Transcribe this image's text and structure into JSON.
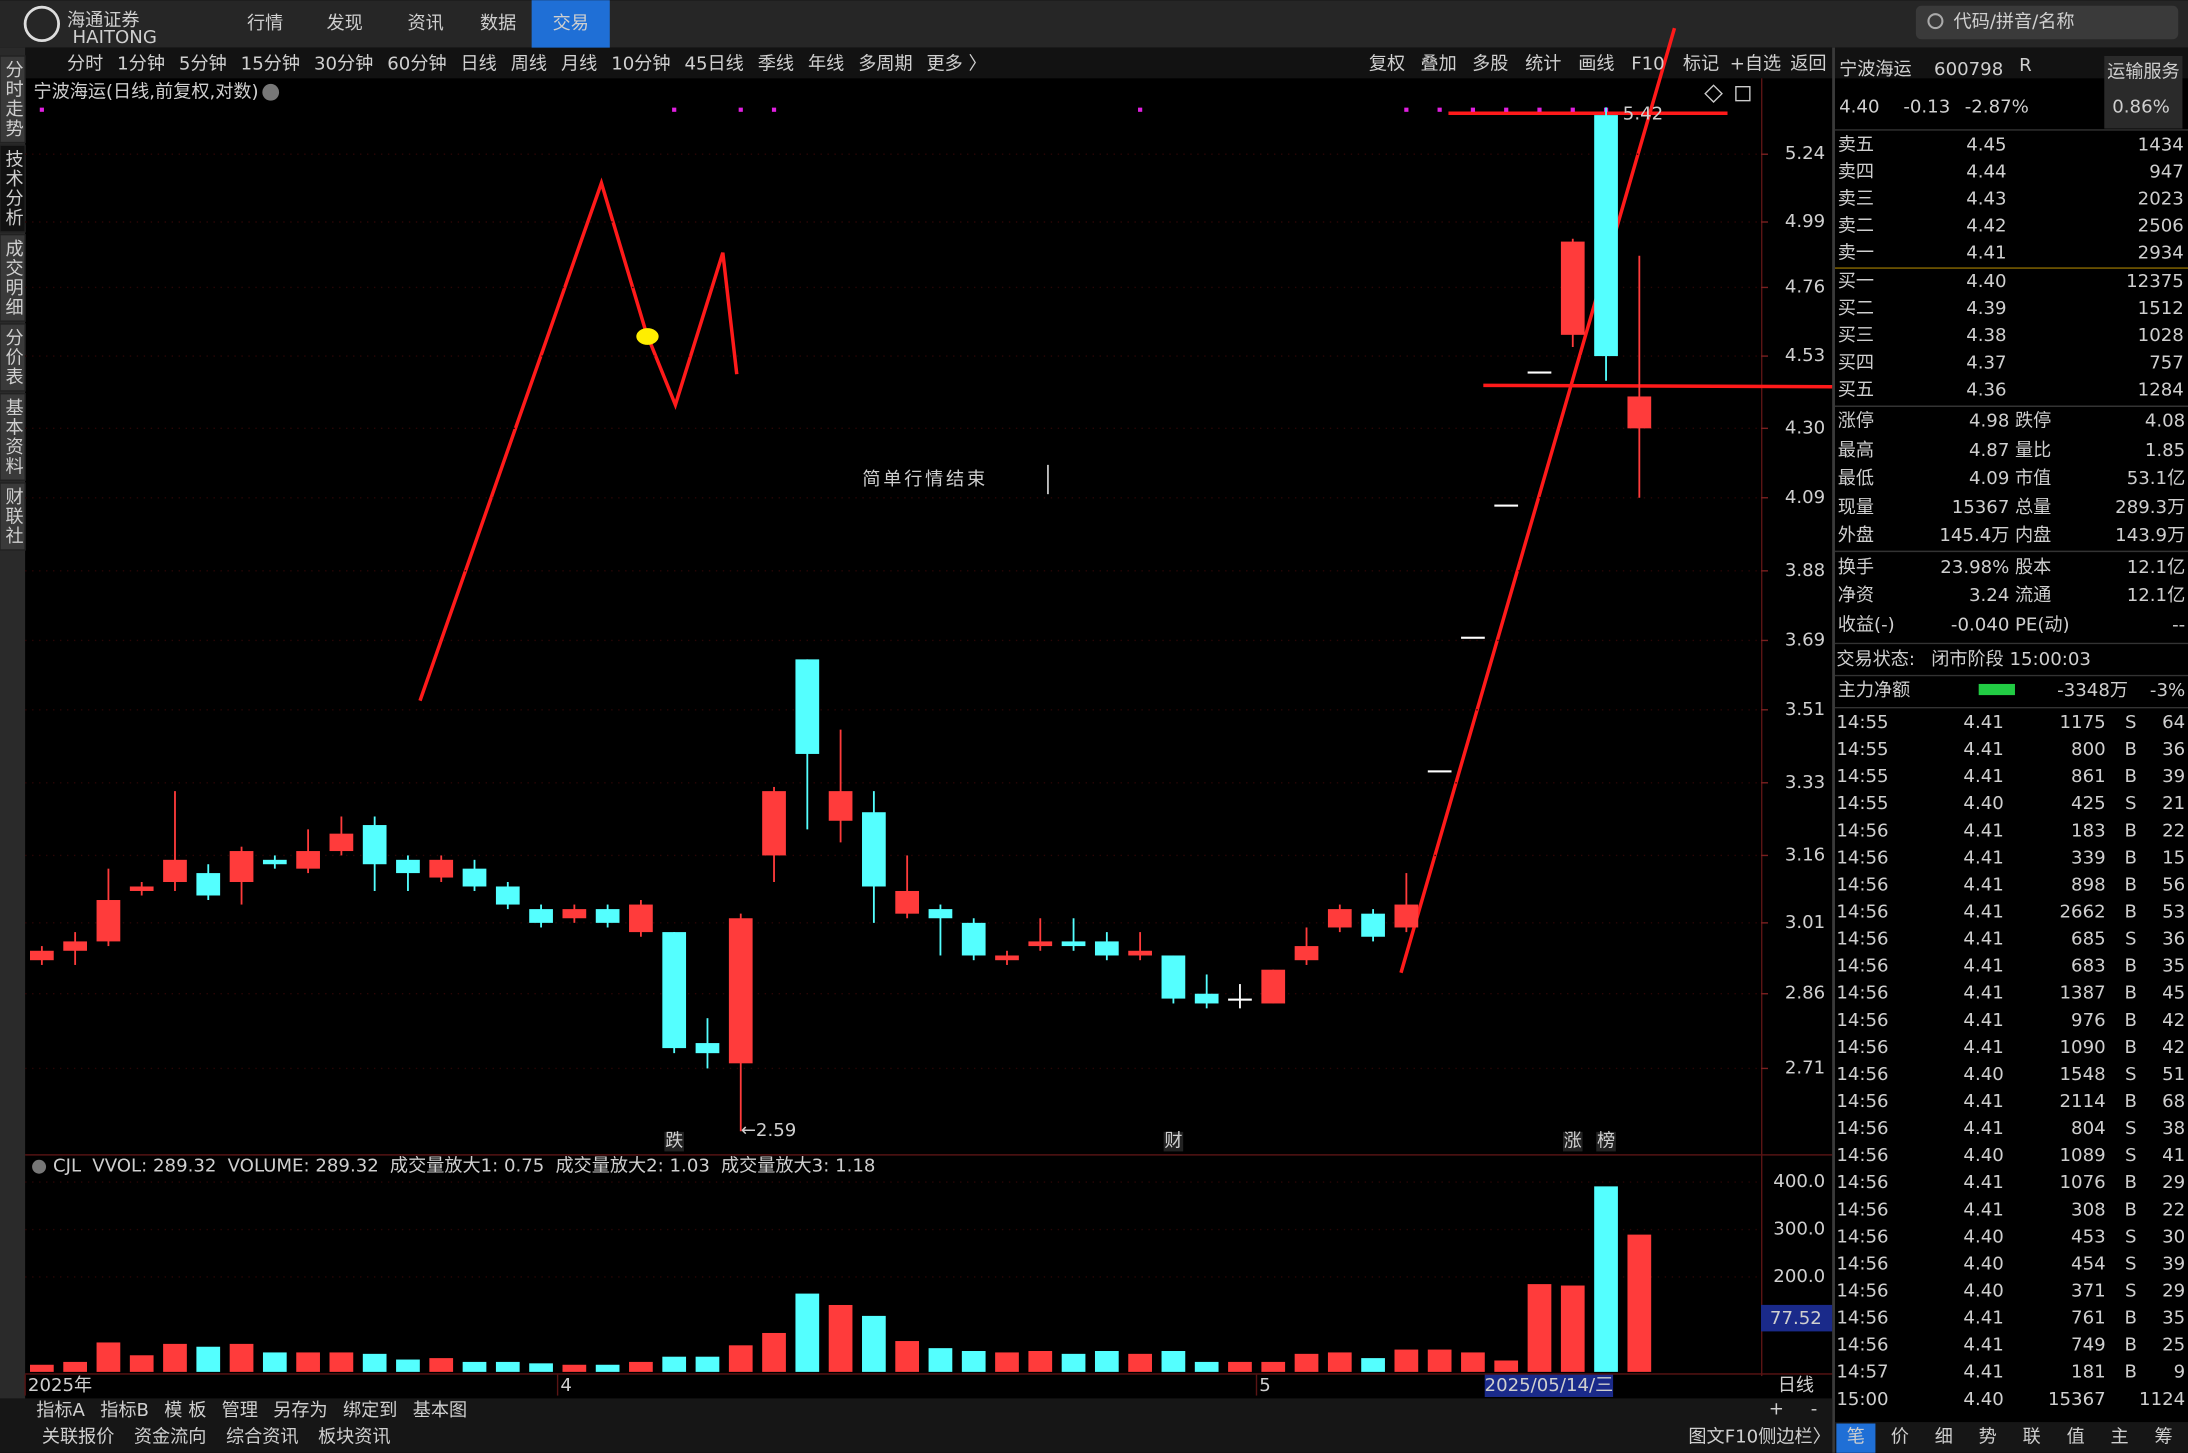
{
  "chart_data": [
    {
      "type": "candlestick",
      "log": true,
      "grid": true,
      "up_color": "#ff3b3b",
      "down_color": "#54ffff",
      "flat_color": "#ffffff",
      "categories": [
        "2025年",
        null,
        null,
        null,
        null,
        null,
        null,
        null,
        null,
        null,
        null,
        null,
        null,
        null,
        null,
        null,
        "4",
        null,
        null,
        null,
        null,
        null,
        null,
        null,
        null,
        null,
        null,
        null,
        null,
        null,
        null,
        null,
        null,
        null,
        null,
        null,
        null,
        "5",
        null,
        null,
        null,
        null,
        null,
        null,
        null,
        null,
        null,
        null,
        null
      ],
      "open": [
        2.93,
        2.95,
        2.97,
        3.08,
        3.1,
        3.12,
        3.1,
        3.15,
        3.13,
        3.17,
        3.23,
        3.15,
        3.11,
        3.13,
        3.09,
        3.04,
        3.02,
        3.04,
        2.99,
        2.99,
        2.76,
        2.72,
        3.16,
        3.64,
        3.24,
        3.26,
        3.03,
        3.04,
        3.01,
        2.93,
        2.96,
        2.97,
        2.97,
        2.94,
        2.94,
        2.86,
        2.85,
        2.84,
        2.93,
        3.0,
        3.03,
        3.0,
        3.36,
        3.7,
        4.07,
        4.48,
        4.6,
        5.39,
        4.3
      ],
      "close": [
        2.95,
        2.97,
        3.06,
        3.09,
        3.15,
        3.07,
        3.17,
        3.14,
        3.17,
        3.21,
        3.14,
        3.12,
        3.15,
        3.09,
        3.05,
        3.01,
        3.04,
        3.01,
        3.05,
        2.75,
        2.74,
        3.02,
        3.31,
        3.4,
        3.31,
        3.09,
        3.08,
        3.02,
        2.94,
        2.94,
        2.97,
        2.96,
        2.94,
        2.95,
        2.85,
        2.84,
        2.85,
        2.91,
        2.96,
        3.04,
        2.98,
        3.05,
        3.36,
        3.7,
        4.07,
        4.48,
        4.92,
        4.53,
        4.4
      ],
      "high": [
        2.96,
        2.99,
        3.13,
        3.1,
        3.31,
        3.14,
        3.18,
        3.16,
        3.22,
        3.25,
        3.25,
        3.16,
        3.16,
        3.15,
        3.1,
        3.05,
        3.05,
        3.05,
        3.06,
        2.99,
        2.81,
        3.03,
        3.32,
        3.64,
        3.46,
        3.31,
        3.16,
        3.05,
        3.02,
        2.95,
        3.02,
        3.02,
        2.99,
        2.99,
        2.94,
        2.9,
        2.88,
        2.91,
        3.0,
        3.05,
        3.04,
        3.12,
        3.36,
        3.7,
        4.07,
        4.48,
        4.93,
        5.42,
        4.87
      ],
      "low": [
        2.92,
        2.92,
        2.96,
        3.07,
        3.08,
        3.06,
        3.05,
        3.13,
        3.12,
        3.16,
        3.08,
        3.08,
        3.1,
        3.08,
        3.04,
        3.0,
        3.01,
        3.0,
        2.98,
        2.74,
        2.71,
        2.59,
        3.1,
        3.22,
        3.19,
        3.01,
        3.02,
        2.94,
        2.93,
        2.92,
        2.95,
        2.95,
        2.93,
        2.93,
        2.84,
        2.83,
        2.83,
        2.84,
        2.92,
        2.99,
        2.97,
        2.99,
        3.36,
        3.7,
        4.07,
        4.48,
        4.56,
        4.45,
        4.09
      ],
      "ylim": [
        2.55,
        5.43
      ],
      "yticks": [
        5.24,
        4.99,
        4.76,
        4.53,
        {
          "value": 4.3,
          "label": "4.30"
        },
        4.09,
        3.88,
        3.69,
        3.51,
        3.33,
        3.16,
        3.01,
        2.86,
        2.71
      ],
      "annotations": [
        {
          "index": 21,
          "text": "←2.59"
        },
        {
          "index": 47,
          "text": "5.42"
        }
      ],
      "markers": [
        {
          "index": 19,
          "text": "跌",
          "color": "#3cff3c"
        },
        {
          "index": 34,
          "text": "财",
          "color": "#9ad0ff"
        },
        {
          "index": 46,
          "text": "涨",
          "color": "#ff5555"
        },
        {
          "index": 47,
          "text": "榜",
          "color": "#ffd24a"
        }
      ]
    },
    {
      "type": "bar",
      "grid": true,
      "values": [
        15,
        21,
        62,
        35,
        59,
        53,
        59,
        41,
        41,
        41,
        38,
        26,
        29,
        21,
        21,
        18,
        15,
        15,
        21,
        32,
        32,
        56,
        82,
        165,
        141,
        118,
        65,
        50,
        44,
        41,
        44,
        38,
        44,
        38,
        44,
        21,
        21,
        21,
        38,
        41,
        29,
        47,
        47,
        41,
        24,
        185,
        182,
        391,
        289.32
      ],
      "ylim": [
        0,
        450
      ],
      "yticks": [
        {
          "value": 400,
          "label": "400.0"
        },
        {
          "value": 300,
          "label": "300.0"
        },
        {
          "value": 200,
          "label": "200.0"
        }
      ]
    }
  ],
  "ui": {
    "logo": "海通证券",
    "logo_en": "HAITONG",
    "top_menu": [
      {
        "text": "行情"
      },
      {
        "text": "发现"
      },
      {
        "text": "资讯"
      },
      {
        "text": "数据"
      },
      {
        "text": "交易",
        "active": true
      }
    ],
    "search_placeholder": "代码/拼音/名称",
    "periods": [
      {
        "text": "分时"
      },
      {
        "text": "1分钟"
      },
      {
        "text": "5分钟"
      },
      {
        "text": "15分钟"
      },
      {
        "text": "30分钟"
      },
      {
        "text": "60分钟"
      },
      {
        "text": "日线",
        "active": true
      },
      {
        "text": "周线"
      },
      {
        "text": "月线"
      },
      {
        "text": "10分钟"
      },
      {
        "text": "45日线"
      },
      {
        "text": "季线"
      },
      {
        "text": "年线"
      },
      {
        "text": "多周期"
      },
      {
        "text": "更多 〉"
      }
    ],
    "tools": [
      "复权",
      "叠加",
      "多股",
      "统计",
      "画线",
      "F10",
      "标记",
      "+自选",
      "返回"
    ],
    "side_tabs": [
      {
        "text": "分时走势"
      },
      {
        "text": "技术分析",
        "active": true
      },
      {
        "text": "成交明细"
      },
      {
        "text": "分价表"
      },
      {
        "text": "基本资料"
      },
      {
        "text": "财联社"
      }
    ],
    "chart_title": "宁波海运(日线,前复权,对数)",
    "note": "简单行情结束",
    "volume_legend": [
      {
        "text": "CJL",
        "color": "#dddddd"
      },
      {
        "text": "VVOL: 289.32",
        "color": "#dddddd"
      },
      {
        "text": "VOLUME: 289.32",
        "color": "#ffd700"
      },
      {
        "text": "成交量放大1: 0.75",
        "color": "#1f4fff"
      },
      {
        "text": "成交量放大2: 1.03",
        "color": "#dddddd"
      },
      {
        "text": "成交量放大3: 1.18",
        "color": "#ff3b3b"
      }
    ],
    "volume_cursor": "77.52",
    "cursor_date": "2025/05/14/三",
    "period_label": "日线",
    "zoom": [
      "+",
      "-"
    ],
    "bottom_tabs": [
      {
        "text": "指标A"
      },
      {
        "text": "指标B"
      },
      {
        "text": "模 板"
      },
      {
        "text": "管理",
        "color": "#ff4444"
      },
      {
        "text": "另存为"
      },
      {
        "text": "绑定到"
      },
      {
        "text": "基本图"
      }
    ],
    "bottom_links": [
      {
        "text": "关联报价",
        "color": "#dddddd"
      },
      {
        "text": "资金流向",
        "color": "#dddddd"
      },
      {
        "text": "综合资讯",
        "color": "#ffd24a"
      },
      {
        "text": "板块资讯",
        "color": "#ffd24a"
      }
    ],
    "bottom_right": [
      "图文F10",
      "侧边栏〉"
    ],
    "panel_tabs": [
      "笔",
      "价",
      "细",
      "势",
      "联",
      "值",
      "主",
      "筹"
    ],
    "quote": {
      "name": "宁波海运",
      "code": "600798",
      "flag": "R",
      "industry": "运输服务",
      "price": "4.40",
      "change": "-0.13",
      "pct": "-2.87%",
      "extra": "0.86%"
    },
    "asks": [
      [
        "卖五",
        "4.45",
        "1434"
      ],
      [
        "卖四",
        "4.44",
        "947"
      ],
      [
        "卖三",
        "4.43",
        "2023"
      ],
      [
        "卖二",
        "4.42",
        "2506"
      ],
      [
        "卖一",
        "4.41",
        "2934"
      ]
    ],
    "bids": [
      [
        "买一",
        "4.40",
        "12375"
      ],
      [
        "买二",
        "4.39",
        "1512"
      ],
      [
        "买三",
        "4.38",
        "1028"
      ],
      [
        "买四",
        "4.37",
        "757"
      ],
      [
        "买五",
        "4.36",
        "1284"
      ]
    ],
    "stats": [
      [
        "涨停",
        "4.98",
        "跌停",
        "4.08"
      ],
      [
        "最高",
        "4.87",
        "量比",
        "1.85"
      ],
      [
        "最低",
        "4.09",
        "市值",
        "53.1亿"
      ],
      [
        "现量",
        "15367",
        "总量",
        "289.3万"
      ],
      [
        "外盘",
        "145.4万",
        "内盘",
        "143.9万"
      ],
      [
        "换手",
        "23.98%",
        "股本",
        "12.1亿"
      ],
      [
        "净资",
        "3.24",
        "流通",
        "12.1亿"
      ],
      [
        "收益(-)",
        "-0.040",
        "PE(动)",
        "--"
      ]
    ],
    "status": [
      "交易状态:",
      "闭市阶段 15:00:03"
    ],
    "main_flow": [
      "主力净额",
      "-3348万",
      "-3%"
    ],
    "trades": [
      [
        "14:55",
        "4.41",
        "1175",
        "S",
        "64"
      ],
      [
        "14:55",
        "4.41",
        "800",
        "B",
        "36"
      ],
      [
        "14:55",
        "4.41",
        "861",
        "B",
        "39"
      ],
      [
        "14:55",
        "4.40",
        "425",
        "S",
        "21"
      ],
      [
        "14:56",
        "4.41",
        "183",
        "B",
        "22"
      ],
      [
        "14:56",
        "4.41",
        "339",
        "B",
        "15"
      ],
      [
        "14:56",
        "4.41",
        "898",
        "B",
        "56"
      ],
      [
        "14:56",
        "4.41",
        "2662",
        "B",
        "53"
      ],
      [
        "14:56",
        "4.41",
        "685",
        "S",
        "36"
      ],
      [
        "14:56",
        "4.41",
        "683",
        "B",
        "35"
      ],
      [
        "14:56",
        "4.41",
        "1387",
        "B",
        "45"
      ],
      [
        "14:56",
        "4.41",
        "976",
        "B",
        "42"
      ],
      [
        "14:56",
        "4.41",
        "1090",
        "B",
        "42"
      ],
      [
        "14:56",
        "4.40",
        "1548",
        "S",
        "51"
      ],
      [
        "14:56",
        "4.41",
        "2114",
        "B",
        "68"
      ],
      [
        "14:56",
        "4.41",
        "804",
        "S",
        "38"
      ],
      [
        "14:56",
        "4.40",
        "1089",
        "S",
        "41"
      ],
      [
        "14:56",
        "4.41",
        "1076",
        "B",
        "29"
      ],
      [
        "14:56",
        "4.41",
        "308",
        "B",
        "22"
      ],
      [
        "14:56",
        "4.40",
        "453",
        "S",
        "30"
      ],
      [
        "14:56",
        "4.40",
        "454",
        "S",
        "39"
      ],
      [
        "14:56",
        "4.40",
        "371",
        "S",
        "29"
      ],
      [
        "14:56",
        "4.41",
        "761",
        "B",
        "35"
      ],
      [
        "14:56",
        "4.41",
        "749",
        "B",
        "25"
      ],
      [
        "14:57",
        "4.41",
        "181",
        "B",
        "9"
      ],
      [
        "15:00",
        "4.40",
        "15367",
        "",
        "1124"
      ]
    ]
  }
}
